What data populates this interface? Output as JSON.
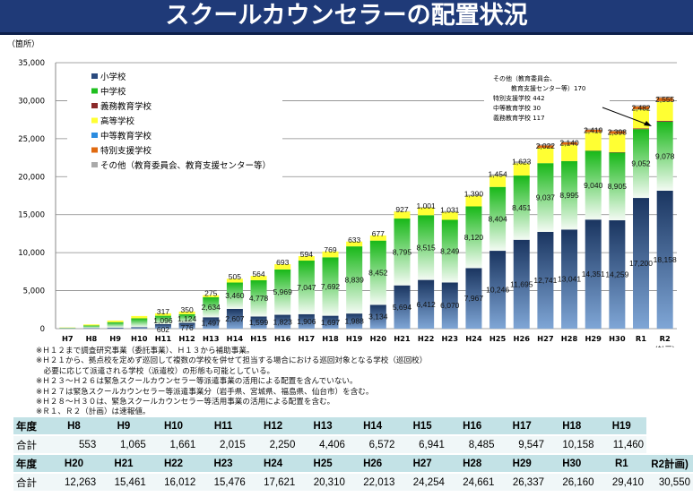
{
  "title": "スクールカウンセラーの配置状況",
  "chart_data": {
    "type": "bar",
    "stacked": true,
    "ylabel": "（箇所）",
    "ylim": [
      0,
      35000
    ],
    "yticks": [
      0,
      5000,
      10000,
      15000,
      20000,
      25000,
      30000,
      35000
    ],
    "grid": true,
    "legend_placement": "top-left",
    "categories": [
      "H7",
      "H8",
      "H9",
      "H10",
      "H11",
      "H12",
      "H13",
      "H14",
      "H15",
      "H16",
      "H17",
      "H18",
      "H19",
      "H20",
      "H21",
      "H22",
      "H23",
      "H24",
      "H25",
      "H26",
      "H27",
      "H28",
      "H29",
      "H30",
      "R1",
      "R2"
    ],
    "x_sublabel": {
      "R2": "（計画）"
    },
    "series": [
      {
        "name": "小学校",
        "color": "#2a4a7e",
        "values": [
          29,
          83,
          140,
          202,
          602,
          776,
          1497,
          2607,
          1599,
          1823,
          1906,
          1697,
          1988,
          3134,
          5694,
          6412,
          6070,
          7967,
          10246,
          11695,
          12741,
          13041,
          14351,
          14259,
          17200,
          18158
        ]
      },
      {
        "name": "中学校",
        "color": "#1fbf1f",
        "values": [
          93,
          337,
          712,
          1152,
          1096,
          1124,
          2634,
          3460,
          4778,
          5969,
          7047,
          7692,
          8839,
          8452,
          8795,
          8515,
          8249,
          8120,
          8404,
          8451,
          9037,
          8995,
          9040,
          8905,
          9052,
          9078
        ]
      },
      {
        "name": "義務教育学校",
        "color": "#8b2a2a",
        "values": [
          0,
          0,
          0,
          0,
          0,
          0,
          0,
          0,
          0,
          0,
          0,
          0,
          0,
          0,
          0,
          0,
          0,
          0,
          0,
          0,
          0,
          20,
          40,
          60,
          100,
          117
        ]
      },
      {
        "name": "高等学校",
        "color": "#ffff33",
        "values": [
          32,
          133,
          213,
          307,
          317,
          350,
          275,
          505,
          564,
          693,
          594,
          769,
          633,
          677,
          927,
          1001,
          1031,
          1390,
          1454,
          1623,
          2022,
          2140,
          2419,
          2398,
          2482,
          2555
        ]
      },
      {
        "name": "中等教育学校",
        "color": "#2b8ce0",
        "values": [
          0,
          0,
          0,
          0,
          0,
          0,
          0,
          0,
          0,
          0,
          0,
          0,
          0,
          0,
          0,
          0,
          0,
          0,
          0,
          0,
          10,
          15,
          20,
          25,
          30,
          30
        ]
      },
      {
        "name": "特別支援学校",
        "color": "#e06a10",
        "values": [
          0,
          0,
          0,
          0,
          0,
          0,
          0,
          0,
          0,
          0,
          0,
          0,
          0,
          0,
          0,
          0,
          0,
          0,
          0,
          0,
          294,
          300,
          297,
          343,
          380,
          442
        ]
      },
      {
        "name": "その他（教育委員会、教育支援センター等）",
        "color": "#aaaaaa",
        "values": [
          0,
          0,
          0,
          0,
          0,
          0,
          0,
          0,
          0,
          0,
          0,
          0,
          0,
          0,
          45,
          84,
          126,
          144,
          206,
          244,
          150,
          150,
          170,
          170,
          166,
          170
        ]
      }
    ],
    "labeled_series": [
      0,
      1,
      3
    ],
    "labels_from": "H11",
    "annotation": [
      "その他（教育委員会、",
      "教育支援センター等）170",
      "特別支援学校 442",
      "中等教育学校 30",
      "義務教育学校 117"
    ]
  },
  "notes": [
    "※Ｈ１２まで調査研究事業（委託事業）、Ｈ１３から補助事業。",
    "※Ｈ２１から、拠点校を定めず巡回して複数の学校を併せて担当する場合における巡回対象となる学校（巡回校）",
    "　必要に応じて派遣される学校（派遣校）の形態も可能としている。",
    "※Ｈ２３～Ｈ２６は緊急スクールカウンセラー等派遣事業の活用による配置を含んでいない。",
    "※Ｈ２７は緊急スクールカウンセラー等派遣事業分（岩手県、宮城県、福島県、仙台市）を含む。",
    "※Ｈ２８～Ｈ３０は、緊急スクールカウンセラー等活用事業の活用による配置を含む。",
    "※Ｒ１、Ｒ２（計画）は速報値。"
  ],
  "table": {
    "row_label_year": "年度",
    "row_label_total": "合計",
    "groups": [
      {
        "years": [
          "H8",
          "H9",
          "H10",
          "H11",
          "H12",
          "H13",
          "H14",
          "H15",
          "H16",
          "H17",
          "H18",
          "H19"
        ],
        "totals": [
          "553",
          "1,065",
          "1,661",
          "2,015",
          "2,250",
          "4,406",
          "6,572",
          "6,941",
          "8,485",
          "9,547",
          "10,158",
          "11,460"
        ]
      },
      {
        "years": [
          "H20",
          "H21",
          "H22",
          "H23",
          "H24",
          "H25",
          "H26",
          "H27",
          "H28",
          "H29",
          "H30",
          "R1",
          "R2計画)"
        ],
        "totals": [
          "12,263",
          "15,461",
          "16,012",
          "15,476",
          "17,621",
          "20,310",
          "22,013",
          "24,254",
          "24,661",
          "26,337",
          "26,160",
          "29,410",
          "30,550"
        ]
      }
    ]
  }
}
